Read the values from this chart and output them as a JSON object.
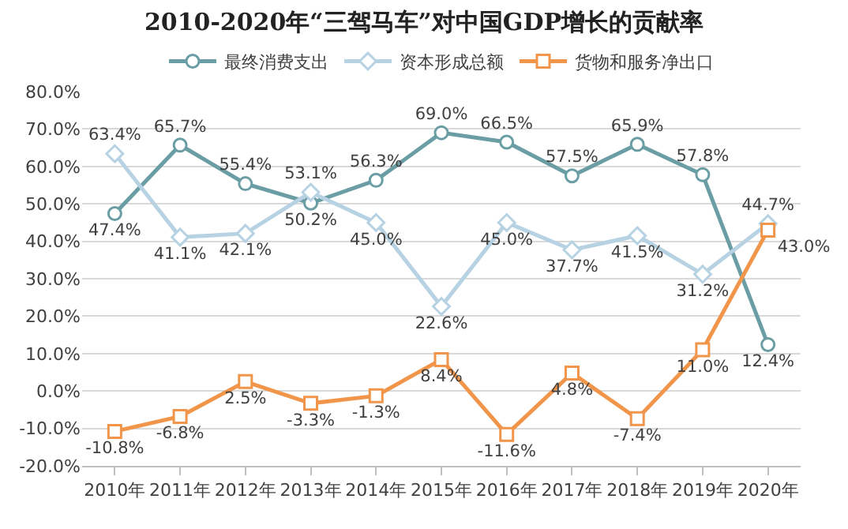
{
  "chart_data": {
    "type": "line",
    "title": "2010-2020年“三驾马车”对中国GDP增长的贡献率",
    "categories": [
      "2010年",
      "2011年",
      "2012年",
      "2013年",
      "2014年",
      "2015年",
      "2016年",
      "2017年",
      "2018年",
      "2019年",
      "2020年"
    ],
    "series": [
      {
        "name": "最终消费支出",
        "color": "#6a9ea4",
        "marker": "circle",
        "values": [
          47.4,
          65.7,
          55.4,
          50.2,
          56.3,
          69.0,
          66.5,
          57.5,
          65.9,
          57.8,
          12.4
        ],
        "value_labels": [
          "47.4%",
          "65.7%",
          "55.4%",
          "50.2%",
          "56.3%",
          "69.0%",
          "66.5%",
          "57.5%",
          "65.9%",
          "57.8%",
          "12.4%"
        ]
      },
      {
        "name": "资本形成总额",
        "color": "#b7d2e3",
        "marker": "diamond",
        "values": [
          63.4,
          41.1,
          42.1,
          53.1,
          45.0,
          22.6,
          45.0,
          37.7,
          41.5,
          31.2,
          44.7
        ],
        "value_labels": [
          "63.4%",
          "41.1%",
          "42.1%",
          "53.1%",
          "45.0%",
          "22.6%",
          "45.0%",
          "37.7%",
          "41.5%",
          "31.2%",
          "44.7%"
        ]
      },
      {
        "name": "货物和服务净出口",
        "color": "#f0954a",
        "marker": "square",
        "values": [
          -10.8,
          -6.8,
          2.5,
          -3.3,
          -1.3,
          8.4,
          -11.6,
          4.8,
          -7.4,
          11.0,
          43.0
        ],
        "value_labels": [
          "-10.8%",
          "-6.8%",
          "2.5%",
          "-3.3%",
          "-1.3%",
          "8.4%",
          "-11.6%",
          "4.8%",
          "-7.4%",
          "11.0%",
          "43.0%"
        ]
      }
    ],
    "ylim": [
      -20,
      80
    ],
    "yticks": [
      {
        "value": -20,
        "label": "-20.0%"
      },
      {
        "value": -10,
        "label": "-10.0%"
      },
      {
        "value": 0,
        "label": "0.0%"
      },
      {
        "value": 10,
        "label": "10.0%"
      },
      {
        "value": 20,
        "label": "20.0%"
      },
      {
        "value": 30,
        "label": "30.0%"
      },
      {
        "value": 40,
        "label": "40.0%"
      },
      {
        "value": 50,
        "label": "50.0%"
      },
      {
        "value": 60,
        "label": "60.0%"
      },
      {
        "value": 70,
        "label": "70.0%"
      },
      {
        "value": 80,
        "label": "80.0%"
      }
    ],
    "grid": "y",
    "legend": "top",
    "line_style": "solid"
  }
}
